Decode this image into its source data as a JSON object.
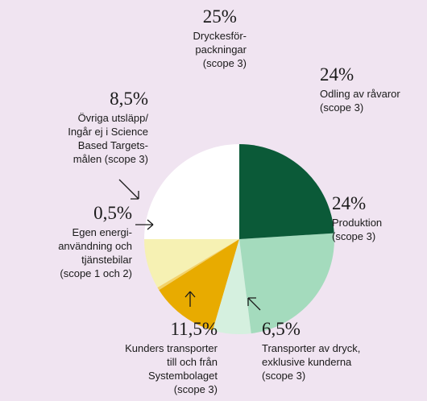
{
  "chart_data": {
    "type": "pie",
    "categories": [
      "Odling av råvaror\n(scope 3)",
      "Produktion\n(scope 3)",
      "Transporter av dryck,\nexklusive kunderna\n(scope 3)",
      "Kunders transporter\ntill och från\nSystembolaget\n(scope 3)",
      "Egen energi-\nanvändning och\ntjänstebilar\n(scope 1 och 2)",
      "Övriga utsläpp/\nIngår ej i Science\nBased Targets-\nmålen (scope 3)",
      "Dryckesför-\npackningar\n(scope 3)"
    ],
    "values": [
      24,
      24,
      6.5,
      11.5,
      0.5,
      8.5,
      25
    ],
    "value_labels": [
      "24%",
      "24%",
      "6,5%",
      "11,5%",
      "0,5%",
      "8,5%",
      "25%"
    ],
    "colors": [
      "#0b5a38",
      "#a4dbbd",
      "#d5f0df",
      "#e8ab00",
      "#f3d36a",
      "#f6f1b3",
      "#ffffff"
    ]
  }
}
